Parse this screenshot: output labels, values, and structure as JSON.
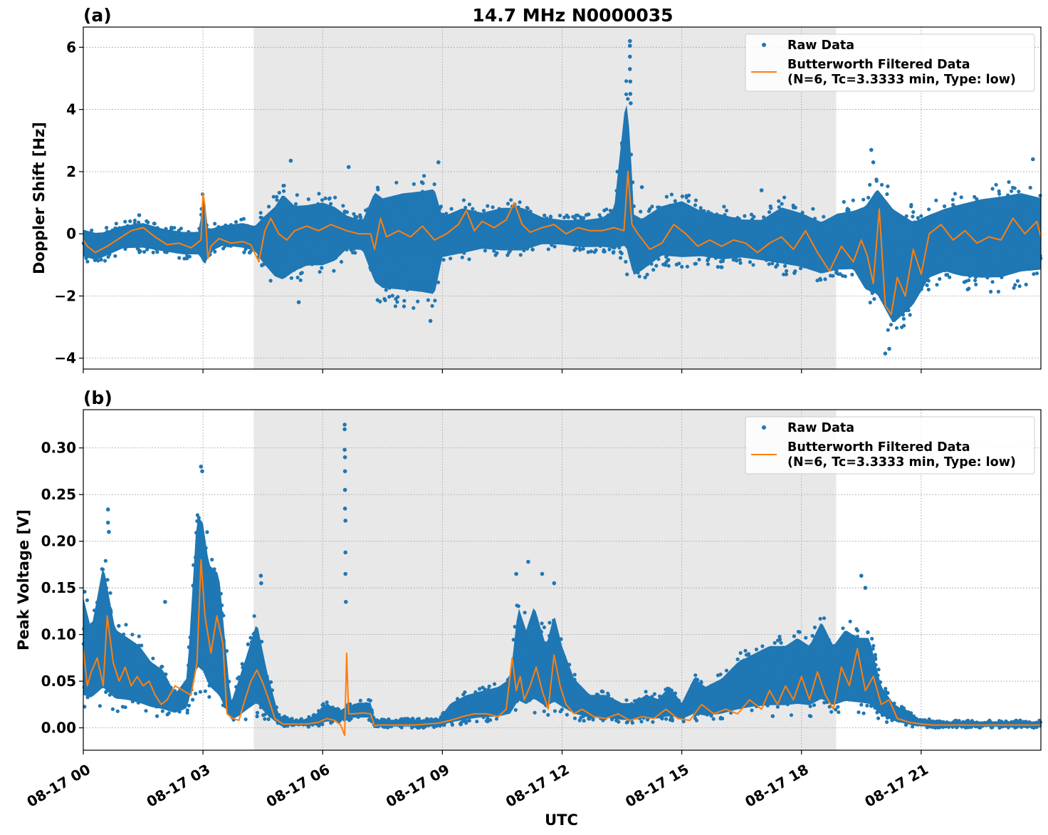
{
  "chart_data": {
    "title": "14.7 MHz N0000035",
    "xlabel": "UTC",
    "x_tick_labels": [
      "08-17 00",
      "08-17 03",
      "08-17 06",
      "08-17 09",
      "08-17 12",
      "08-17 15",
      "08-17 18",
      "08-17 21"
    ],
    "x_tick_hours": [
      0,
      3,
      6,
      9,
      12,
      15,
      18,
      21
    ],
    "xlim_hours": [
      0,
      24
    ],
    "shaded_region_hours": [
      4.27,
      18.87
    ],
    "shaded_color": "#e8e8e8",
    "grid": true,
    "legend_placement": "top-right",
    "colors": {
      "raw": "#1f77b4",
      "filtered": "#ff7f0e"
    },
    "legend": {
      "raw": "Raw Data",
      "filtered_line1": "Butterworth Filtered Data",
      "filtered_line2": "(N=6, Tc=3.3333 min, Type: low)"
    },
    "panels": [
      {
        "panel_label": "(a)",
        "type": "scatter",
        "ylabel": "Doppler Shift [Hz]",
        "ylim": [
          -4.35,
          6.65
        ],
        "yticks": [
          -4,
          -2,
          0,
          2,
          4,
          6
        ],
        "ytick_labels": [
          "−4",
          "−2",
          "0",
          "2",
          "4",
          "6"
        ],
        "raw_envelope": {
          "x": [
            0,
            0.3,
            0.5,
            1,
            1.5,
            2,
            2.5,
            2.9,
            3.0,
            3.05,
            3.1,
            3.2,
            3.5,
            4.0,
            4.3,
            4.5,
            4.8,
            5.0,
            5.3,
            5.6,
            6.0,
            6.3,
            6.6,
            7.0,
            7.3,
            7.5,
            8.0,
            8.5,
            8.8,
            9.0,
            9.5,
            10,
            10.5,
            11,
            11.5,
            12,
            12.5,
            13,
            13.3,
            13.6,
            13.7,
            13.8,
            14.0,
            14.5,
            15,
            15.5,
            16,
            16.5,
            17,
            17.5,
            18,
            18.5,
            18.9,
            19.3,
            19.6,
            19.9,
            20.3,
            20.8,
            21.2,
            21.6,
            22,
            22.5,
            23,
            23.5,
            24
          ],
          "upper": [
            0.3,
            0.2,
            0.2,
            0.4,
            0.5,
            0.3,
            0.2,
            0.2,
            1.5,
            1.45,
            0.4,
            0.3,
            0.4,
            0.5,
            0.4,
            0.8,
            1.3,
            1.8,
            1.3,
            1.3,
            1.4,
            1.2,
            0.8,
            0.6,
            1.9,
            1.7,
            1.9,
            2.0,
            2.1,
            0.8,
            1.1,
            0.9,
            1.1,
            1.1,
            0.7,
            0.6,
            0.6,
            0.7,
            1.0,
            5.3,
            4.0,
            1.0,
            0.8,
            1.2,
            1.4,
            1.0,
            0.9,
            0.7,
            0.7,
            1.2,
            1.0,
            0.7,
            1.0,
            1.1,
            1.4,
            2.1,
            1.5,
            0.9,
            1.0,
            1.2,
            1.4,
            1.6,
            1.7,
            1.8,
            1.6
          ],
          "lower": [
            -0.9,
            -1.0,
            -0.9,
            -0.6,
            -0.6,
            -0.7,
            -0.8,
            -0.8,
            -1.3,
            -1.4,
            -1.0,
            -0.7,
            -0.5,
            -0.6,
            -0.7,
            -1.2,
            -1.8,
            -2.0,
            -1.6,
            -1.4,
            -1.4,
            -1.2,
            -0.7,
            -0.7,
            -2.1,
            -2.3,
            -2.4,
            -2.5,
            -2.6,
            -1.0,
            -0.9,
            -0.7,
            -0.8,
            -0.8,
            -0.5,
            -0.5,
            -0.6,
            -0.6,
            -0.7,
            -1.3,
            -1.7,
            -1.7,
            -1.5,
            -1.0,
            -1.1,
            -1.0,
            -1.1,
            -1.0,
            -1.1,
            -1.3,
            -1.4,
            -1.6,
            -1.5,
            -1.5,
            -2.3,
            -2.6,
            -3.6,
            -2.8,
            -1.8,
            -1.6,
            -1.8,
            -1.9,
            -1.9,
            -1.7,
            -1.6
          ]
        },
        "raw_outliers": {
          "x": [
            1.4,
            5.2,
            6.65,
            8.9,
            13.7,
            13.7,
            13.7,
            13.7,
            13.71,
            13.71,
            13.72,
            14.0,
            17.0,
            19.75,
            19.8,
            20.1,
            20.2,
            23.8,
            8.7,
            5.4
          ],
          "y": [
            0.6,
            2.35,
            2.15,
            2.3,
            6.2,
            6.05,
            5.7,
            5.3,
            4.9,
            4.5,
            4.2,
            1.5,
            1.4,
            2.7,
            2.3,
            -3.85,
            -3.7,
            2.4,
            -2.8,
            -2.2
          ]
        },
        "filtered": {
          "x": [
            0,
            0.1,
            0.3,
            0.6,
            0.9,
            1.2,
            1.5,
            1.8,
            2.1,
            2.4,
            2.7,
            2.95,
            3.0,
            3.05,
            3.12,
            3.2,
            3.4,
            3.7,
            4.0,
            4.2,
            4.4,
            4.55,
            4.7,
            4.9,
            5.1,
            5.3,
            5.6,
            5.9,
            6.2,
            6.6,
            6.9,
            7.2,
            7.3,
            7.45,
            7.6,
            7.9,
            8.2,
            8.5,
            8.8,
            9.1,
            9.4,
            9.6,
            9.8,
            10.0,
            10.3,
            10.6,
            10.8,
            11.0,
            11.2,
            11.5,
            11.8,
            12.1,
            12.4,
            12.7,
            13.0,
            13.3,
            13.55,
            13.65,
            13.75,
            13.9,
            14.2,
            14.5,
            14.8,
            15.1,
            15.4,
            15.7,
            16.0,
            16.3,
            16.6,
            16.9,
            17.2,
            17.5,
            17.8,
            18.1,
            18.4,
            18.7,
            19.0,
            19.3,
            19.5,
            19.65,
            19.8,
            19.95,
            20.1,
            20.25,
            20.4,
            20.6,
            20.8,
            21.0,
            21.2,
            21.5,
            21.8,
            22.1,
            22.4,
            22.7,
            23.0,
            23.3,
            23.6,
            23.9,
            24
          ],
          "y": [
            -0.2,
            -0.4,
            -0.6,
            -0.4,
            -0.15,
            0.1,
            0.2,
            -0.1,
            -0.35,
            -0.3,
            -0.45,
            -0.2,
            1.3,
            0.9,
            -0.8,
            -0.4,
            -0.15,
            -0.3,
            -0.25,
            -0.35,
            -0.9,
            0.1,
            0.5,
            0.0,
            -0.2,
            0.1,
            0.25,
            0.1,
            0.3,
            0.1,
            0.0,
            0.0,
            -0.5,
            0.5,
            -0.1,
            0.1,
            -0.1,
            0.25,
            -0.2,
            0.0,
            0.3,
            0.75,
            0.1,
            0.4,
            0.2,
            0.45,
            1.0,
            0.3,
            0.05,
            0.2,
            0.3,
            0.0,
            0.2,
            0.1,
            0.1,
            0.2,
            0.1,
            2.0,
            0.3,
            0.0,
            -0.5,
            -0.3,
            0.3,
            0.0,
            -0.4,
            -0.2,
            -0.4,
            -0.2,
            -0.3,
            -0.6,
            -0.3,
            -0.1,
            -0.5,
            0.1,
            -0.6,
            -1.2,
            -0.4,
            -0.9,
            -0.2,
            -0.7,
            -1.6,
            0.8,
            -2.3,
            -2.6,
            -1.4,
            -2.0,
            -0.5,
            -1.3,
            0.0,
            0.3,
            -0.2,
            0.1,
            -0.3,
            -0.1,
            -0.2,
            0.5,
            0.0,
            0.4,
            -0.1
          ]
        }
      },
      {
        "panel_label": "(b)",
        "type": "scatter",
        "ylabel": "Peak Voltage [V]",
        "ylim": [
          -0.024,
          0.341
        ],
        "yticks": [
          0.0,
          0.05,
          0.1,
          0.15,
          0.2,
          0.25,
          0.3
        ],
        "ytick_labels": [
          "0.00",
          "0.05",
          "0.10",
          "0.15",
          "0.20",
          "0.25",
          "0.30"
        ],
        "raw_envelope": {
          "x": [
            0,
            0.2,
            0.5,
            0.8,
            1.1,
            1.4,
            1.7,
            2.0,
            2.3,
            2.6,
            2.85,
            3.0,
            3.15,
            3.4,
            3.7,
            3.9,
            4.1,
            4.35,
            4.6,
            4.9,
            5.2,
            5.5,
            5.8,
            6.1,
            6.4,
            6.6,
            6.9,
            7.2,
            7.3,
            7.4,
            8.0,
            8.5,
            8.9,
            9.2,
            9.6,
            10.0,
            10.4,
            10.7,
            10.9,
            11.1,
            11.3,
            11.6,
            11.8,
            12.0,
            12.3,
            12.7,
            13.1,
            13.5,
            13.8,
            14.1,
            14.4,
            14.7,
            15.0,
            15.3,
            15.6,
            16.0,
            16.4,
            16.8,
            17.2,
            17.6,
            17.9,
            18.2,
            18.5,
            18.8,
            19.1,
            19.4,
            19.7,
            20.0,
            20.3,
            20.6,
            20.9,
            21.2,
            21.6,
            22.0,
            22.5,
            23.0,
            23.5,
            24
          ],
          "upper": [
            0.16,
            0.12,
            0.2,
            0.12,
            0.11,
            0.1,
            0.08,
            0.07,
            0.04,
            0.06,
            0.26,
            0.25,
            0.2,
            0.19,
            0.03,
            0.06,
            0.09,
            0.13,
            0.07,
            0.015,
            0.01,
            0.01,
            0.015,
            0.03,
            0.02,
            0.025,
            0.03,
            0.03,
            0.01,
            0.01,
            0.01,
            0.01,
            0.01,
            0.03,
            0.04,
            0.045,
            0.05,
            0.06,
            0.15,
            0.12,
            0.15,
            0.1,
            0.14,
            0.1,
            0.06,
            0.04,
            0.04,
            0.03,
            0.03,
            0.04,
            0.035,
            0.05,
            0.03,
            0.06,
            0.05,
            0.06,
            0.08,
            0.09,
            0.1,
            0.1,
            0.11,
            0.1,
            0.13,
            0.1,
            0.12,
            0.11,
            0.11,
            0.05,
            0.03,
            0.02,
            0.012,
            0.01,
            0.008,
            0.008,
            0.008,
            0.008,
            0.008,
            0.008
          ],
          "lower": [
            0.015,
            0.018,
            0.018,
            0.017,
            0.017,
            0.015,
            0.013,
            0.012,
            0.012,
            0.015,
            0.035,
            0.03,
            0.02,
            0.01,
            0.005,
            0.005,
            0.008,
            0.01,
            0.005,
            0.002,
            0.001,
            0.001,
            0.001,
            0.003,
            0.005,
            0.008,
            0.008,
            0.008,
            0.0,
            0.0,
            0.0,
            0.0,
            0.0,
            0.002,
            0.004,
            0.006,
            0.006,
            0.008,
            0.01,
            0.01,
            0.012,
            0.01,
            0.01,
            0.01,
            0.008,
            0.006,
            0.006,
            0.005,
            0.005,
            0.006,
            0.006,
            0.007,
            0.006,
            0.008,
            0.007,
            0.008,
            0.01,
            0.012,
            0.012,
            0.012,
            0.012,
            0.012,
            0.015,
            0.012,
            0.014,
            0.014,
            0.012,
            0.008,
            0.004,
            0.002,
            0.0,
            0.0,
            0.0,
            0.0,
            0.0,
            0.0,
            0.0,
            0.0
          ]
        },
        "raw_outliers": {
          "x": [
            0.62,
            0.62,
            0.64,
            2.05,
            2.95,
            2.98,
            4.45,
            4.46,
            6.55,
            6.55,
            6.55,
            6.56,
            6.56,
            6.56,
            6.56,
            6.57,
            6.57,
            6.57,
            6.58,
            10.85,
            11.15,
            11.5,
            11.8,
            19.5,
            19.6
          ],
          "y": [
            0.234,
            0.22,
            0.21,
            0.135,
            0.28,
            0.275,
            0.163,
            0.155,
            0.325,
            0.32,
            0.298,
            0.29,
            0.275,
            0.255,
            0.235,
            0.222,
            0.188,
            0.165,
            0.135,
            0.165,
            0.178,
            0.165,
            0.155,
            0.163,
            0.15
          ]
        },
        "filtered": {
          "x": [
            0,
            0.1,
            0.2,
            0.35,
            0.5,
            0.6,
            0.75,
            0.9,
            1.05,
            1.2,
            1.35,
            1.5,
            1.65,
            1.8,
            1.95,
            2.1,
            2.3,
            2.5,
            2.7,
            2.85,
            2.95,
            3.05,
            3.2,
            3.35,
            3.5,
            3.6,
            3.75,
            3.9,
            4.05,
            4.2,
            4.35,
            4.5,
            4.65,
            4.8,
            5.0,
            5.3,
            5.6,
            5.9,
            6.1,
            6.3,
            6.45,
            6.55,
            6.6,
            6.65,
            6.8,
            7.0,
            7.2,
            7.3,
            7.4,
            7.7,
            8.0,
            8.3,
            8.6,
            8.9,
            9.2,
            9.5,
            9.8,
            10.1,
            10.4,
            10.6,
            10.75,
            10.85,
            10.95,
            11.05,
            11.2,
            11.35,
            11.5,
            11.65,
            11.8,
            11.95,
            12.1,
            12.3,
            12.5,
            12.8,
            13.1,
            13.4,
            13.7,
            14.0,
            14.3,
            14.6,
            14.9,
            15.2,
            15.5,
            15.8,
            16.1,
            16.4,
            16.7,
            17.0,
            17.2,
            17.4,
            17.6,
            17.8,
            18.0,
            18.2,
            18.4,
            18.6,
            18.8,
            19.0,
            19.2,
            19.4,
            19.6,
            19.8,
            20.0,
            20.2,
            20.4,
            20.7,
            21.0,
            21.3,
            21.6,
            22.0,
            22.5,
            23.0,
            23.5,
            24
          ],
          "y": [
            0.085,
            0.045,
            0.06,
            0.075,
            0.045,
            0.12,
            0.07,
            0.05,
            0.065,
            0.045,
            0.055,
            0.045,
            0.05,
            0.035,
            0.025,
            0.03,
            0.045,
            0.04,
            0.035,
            0.07,
            0.18,
            0.12,
            0.08,
            0.12,
            0.09,
            0.015,
            0.01,
            0.008,
            0.03,
            0.05,
            0.062,
            0.048,
            0.03,
            0.01,
            0.004,
            0.004,
            0.004,
            0.006,
            0.01,
            0.008,
            0.003,
            -0.008,
            0.08,
            0.015,
            0.015,
            0.016,
            0.015,
            0.002,
            0.003,
            0.003,
            0.003,
            0.003,
            0.004,
            0.005,
            0.008,
            0.012,
            0.015,
            0.015,
            0.012,
            0.02,
            0.075,
            0.04,
            0.055,
            0.03,
            0.045,
            0.065,
            0.04,
            0.02,
            0.078,
            0.045,
            0.025,
            0.015,
            0.02,
            0.012,
            0.01,
            0.015,
            0.008,
            0.012,
            0.01,
            0.02,
            0.01,
            0.008,
            0.025,
            0.015,
            0.02,
            0.015,
            0.03,
            0.02,
            0.04,
            0.025,
            0.045,
            0.03,
            0.055,
            0.03,
            0.06,
            0.035,
            0.02,
            0.065,
            0.045,
            0.085,
            0.04,
            0.055,
            0.025,
            0.03,
            0.01,
            0.006,
            0.004,
            0.003,
            0.003,
            0.003,
            0.003,
            0.003,
            0.003,
            0.003
          ]
        }
      }
    ]
  }
}
